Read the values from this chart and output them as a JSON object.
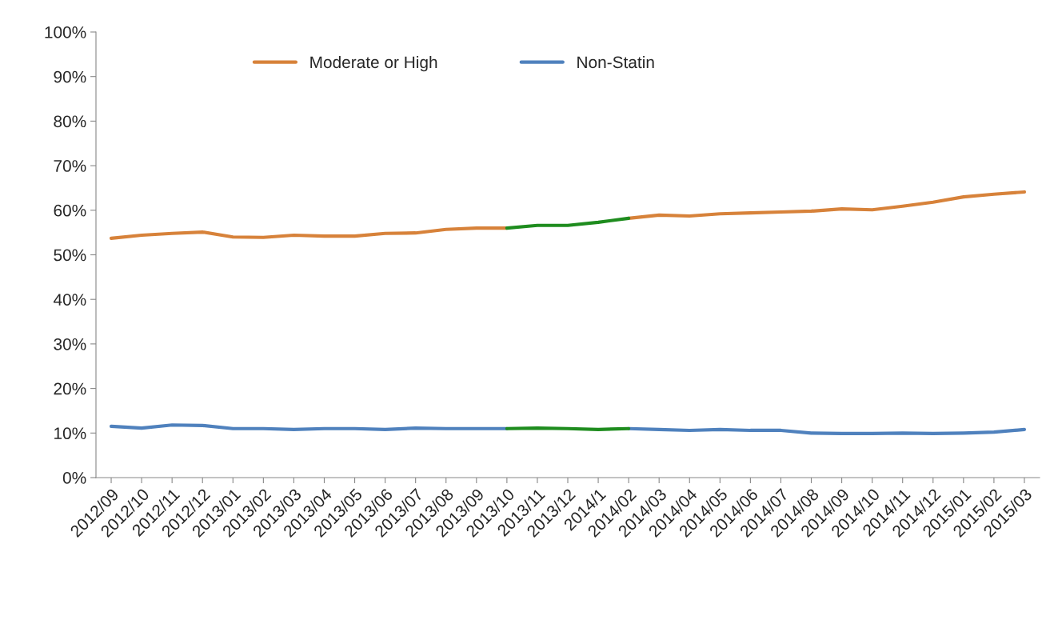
{
  "chart_data": {
    "type": "line",
    "categories": [
      "2012/09",
      "2012/10",
      "2012/11",
      "2012/12",
      "2013/01",
      "2013/02",
      "2013/03",
      "2013/04",
      "2013/05",
      "2013/06",
      "2013/07",
      "2013/08",
      "2013/09",
      "2013/10",
      "2013/11",
      "2013/12",
      "2014/1",
      "2014/02",
      "2014/03",
      "2014/04",
      "2014/05",
      "2014/06",
      "2014/07",
      "2014/08",
      "2014/09",
      "2014/10",
      "2014/11",
      "2014/12",
      "2015/01",
      "2015/02",
      "2015/03"
    ],
    "series": [
      {
        "name": "Moderate or High",
        "color": "#d7823a",
        "values": [
          53.7,
          54.4,
          54.8,
          55.1,
          54.0,
          53.9,
          54.4,
          54.2,
          54.2,
          54.8,
          54.9,
          55.7,
          56.0,
          56.0,
          null,
          null,
          null,
          58.2,
          58.9,
          58.7,
          59.2,
          59.4,
          59.6,
          59.8,
          60.3,
          60.1,
          60.9,
          61.8,
          63.0,
          63.6,
          64.1
        ]
      },
      {
        "name": "Non-Statin",
        "color": "#4f81bd",
        "values": [
          11.5,
          11.1,
          11.8,
          11.7,
          11.0,
          11.0,
          10.8,
          11.0,
          11.0,
          10.8,
          11.1,
          11.0,
          11.0,
          11.0,
          null,
          null,
          null,
          11.0,
          10.8,
          10.6,
          10.8,
          10.6,
          10.6,
          10.0,
          9.9,
          9.9,
          10.0,
          9.9,
          10.0,
          10.2,
          10.8
        ]
      },
      {
        "color": "#1e8c1e",
        "values": [
          null,
          null,
          null,
          null,
          null,
          null,
          null,
          null,
          null,
          null,
          null,
          null,
          null,
          56.0,
          56.6,
          56.6,
          57.3,
          58.2,
          null,
          null,
          null,
          null,
          null,
          null,
          null,
          null,
          null,
          null,
          null,
          null,
          null
        ]
      },
      {
        "color": "#1e8c1e",
        "values": [
          null,
          null,
          null,
          null,
          null,
          null,
          null,
          null,
          null,
          null,
          null,
          null,
          null,
          11.0,
          11.1,
          11.0,
          10.8,
          11.0,
          null,
          null,
          null,
          null,
          null,
          null,
          null,
          null,
          null,
          null,
          null,
          null,
          null
        ]
      }
    ],
    "ylim": [
      0,
      100
    ],
    "yticks": [
      {
        "value": 0,
        "label": "0%"
      },
      {
        "value": 10,
        "label": "10%"
      },
      {
        "value": 20,
        "label": "20%"
      },
      {
        "value": 30,
        "label": "30%"
      },
      {
        "value": 40,
        "label": "40%"
      },
      {
        "value": 50,
        "label": "50%"
      },
      {
        "value": 60,
        "label": "60%"
      },
      {
        "value": 70,
        "label": "70%"
      },
      {
        "value": 80,
        "label": "80%"
      },
      {
        "value": 90,
        "label": "90%"
      },
      {
        "value": 100,
        "label": "100%"
      }
    ],
    "grid": false,
    "legend": "top",
    "marker": "none",
    "line_style": "solid"
  }
}
